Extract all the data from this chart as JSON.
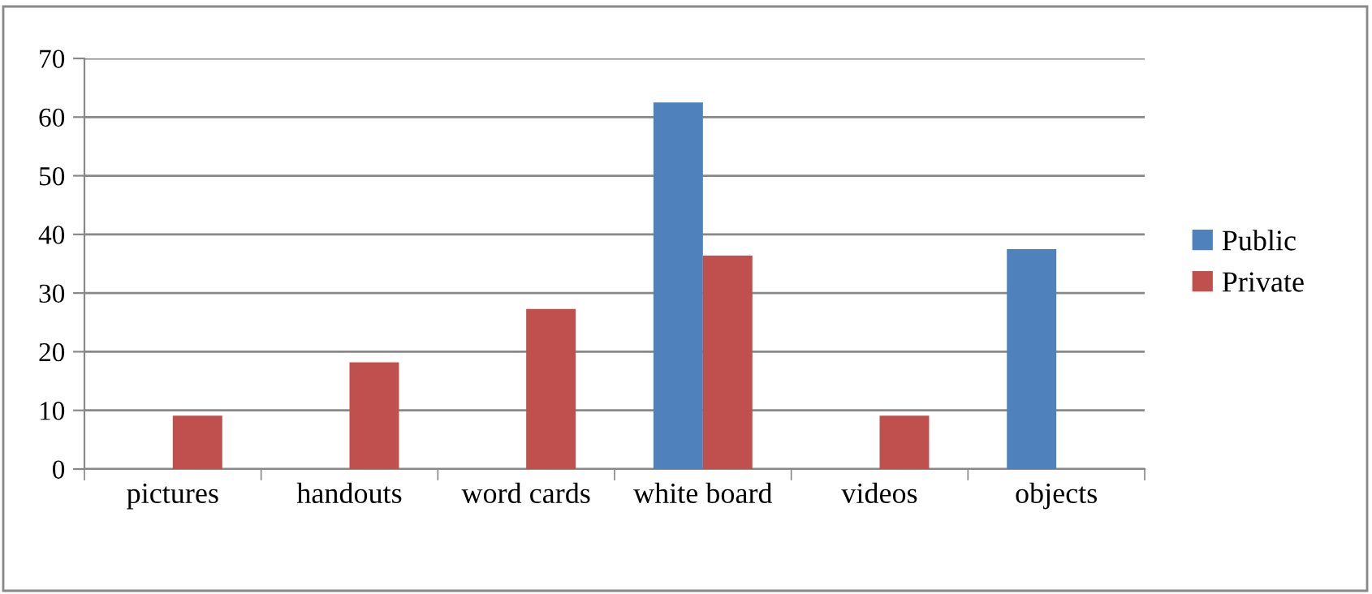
{
  "chart_data": {
    "type": "bar",
    "categories": [
      "pictures",
      "handouts",
      "word cards",
      "white board",
      "videos",
      "objects"
    ],
    "series": [
      {
        "name": "Public",
        "color": "#4f81bd",
        "values": [
          0,
          0,
          0,
          62.5,
          0,
          37.5
        ]
      },
      {
        "name": "Private",
        "color": "#c0504d",
        "values": [
          9.1,
          18.2,
          27.3,
          36.4,
          9.1,
          0
        ]
      }
    ],
    "ylim": [
      0,
      70
    ],
    "yticks": [
      0,
      10,
      20,
      30,
      40,
      50,
      60,
      70
    ],
    "grid": "y",
    "legend": "right"
  }
}
